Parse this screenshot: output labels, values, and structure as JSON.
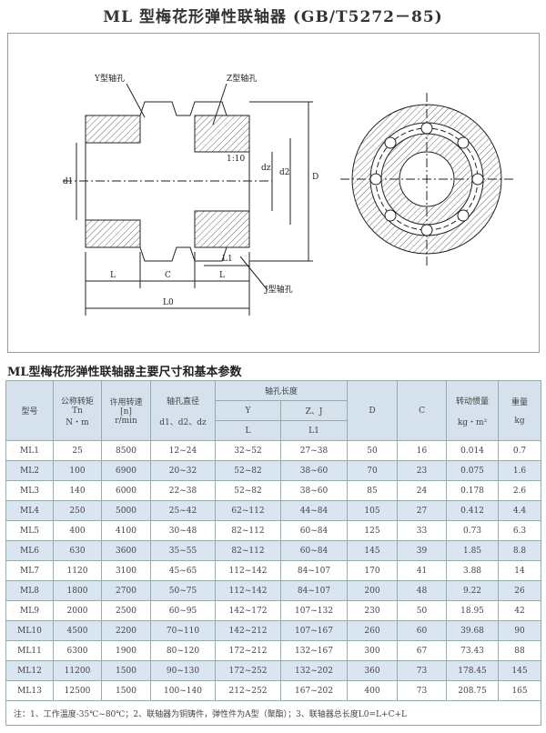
{
  "title": "ML 型梅花形弹性联轴器 (GB/T5272－85)",
  "drawing": {
    "labels": {
      "y_hole": "Y型轴孔",
      "z_hole": "Z型轴孔",
      "j_hole": "J型轴孔",
      "taper": "1:10",
      "d1": "d1",
      "dz": "dz",
      "d2": "d2",
      "D": "D",
      "L_left": "L",
      "C": "C",
      "L_right": "L",
      "L0": "L0",
      "L1": "L1"
    }
  },
  "table_title": "ML型梅花形弹性联轴器主要尺寸和基本参数",
  "table": {
    "headers": {
      "model": "型号",
      "torque": [
        "公称转矩",
        "Tn",
        "N・m"
      ],
      "speed": [
        "许用转速",
        "[n]",
        "r/min"
      ],
      "bore": [
        "轴孔直径",
        "d1、d2、dz"
      ],
      "length": "轴孔长度",
      "y": "Y",
      "zj": "Z、J",
      "L": "L",
      "L1": "L1",
      "D": "D",
      "C": "C",
      "inertia": [
        "转动惯量",
        "kg・m²"
      ],
      "weight": [
        "重量",
        "kg"
      ]
    },
    "rows": [
      [
        "ML1",
        "25",
        "8500",
        "12~24",
        "32~52",
        "27~38",
        "50",
        "16",
        "0.014",
        "0.7"
      ],
      [
        "ML2",
        "100",
        "6900",
        "20~32",
        "52~82",
        "38~60",
        "70",
        "23",
        "0.075",
        "1.6"
      ],
      [
        "ML3",
        "140",
        "6000",
        "22~38",
        "52~82",
        "38~60",
        "85",
        "24",
        "0.178",
        "2.6"
      ],
      [
        "ML4",
        "250",
        "5000",
        "25~42",
        "62~112",
        "44~84",
        "105",
        "27",
        "0.412",
        "4.4"
      ],
      [
        "ML5",
        "400",
        "4100",
        "30~48",
        "82~112",
        "60~84",
        "125",
        "33",
        "0.73",
        "6.3"
      ],
      [
        "ML6",
        "630",
        "3600",
        "35~55",
        "82~112",
        "60~84",
        "145",
        "39",
        "1.85",
        "8.8"
      ],
      [
        "ML7",
        "1120",
        "3100",
        "45~65",
        "112~142",
        "84~107",
        "170",
        "41",
        "3.88",
        "14"
      ],
      [
        "ML8",
        "1800",
        "2700",
        "50~75",
        "112~142",
        "84~107",
        "200",
        "48",
        "9.22",
        "26"
      ],
      [
        "ML9",
        "2000",
        "2500",
        "60~95",
        "142~172",
        "107~132",
        "230",
        "50",
        "18.95",
        "42"
      ],
      [
        "ML10",
        "4500",
        "2200",
        "70~110",
        "142~212",
        "107~167",
        "260",
        "60",
        "39.68",
        "90"
      ],
      [
        "ML11",
        "6300",
        "1900",
        "80~120",
        "172~212",
        "132~167",
        "300",
        "67",
        "73.43",
        "88"
      ],
      [
        "ML12",
        "11200",
        "1500",
        "90~130",
        "172~252",
        "132~202",
        "360",
        "73",
        "178.45",
        "145"
      ],
      [
        "ML13",
        "12500",
        "1500",
        "100~140",
        "212~252",
        "167~202",
        "400",
        "73",
        "208.75",
        "165"
      ]
    ],
    "note": "注：1、工作温度-35℃~80℃；2、联轴器为铜铸件，弹性件为A型（聚酯）；3、联轴器总长度L0=L+C+L"
  }
}
